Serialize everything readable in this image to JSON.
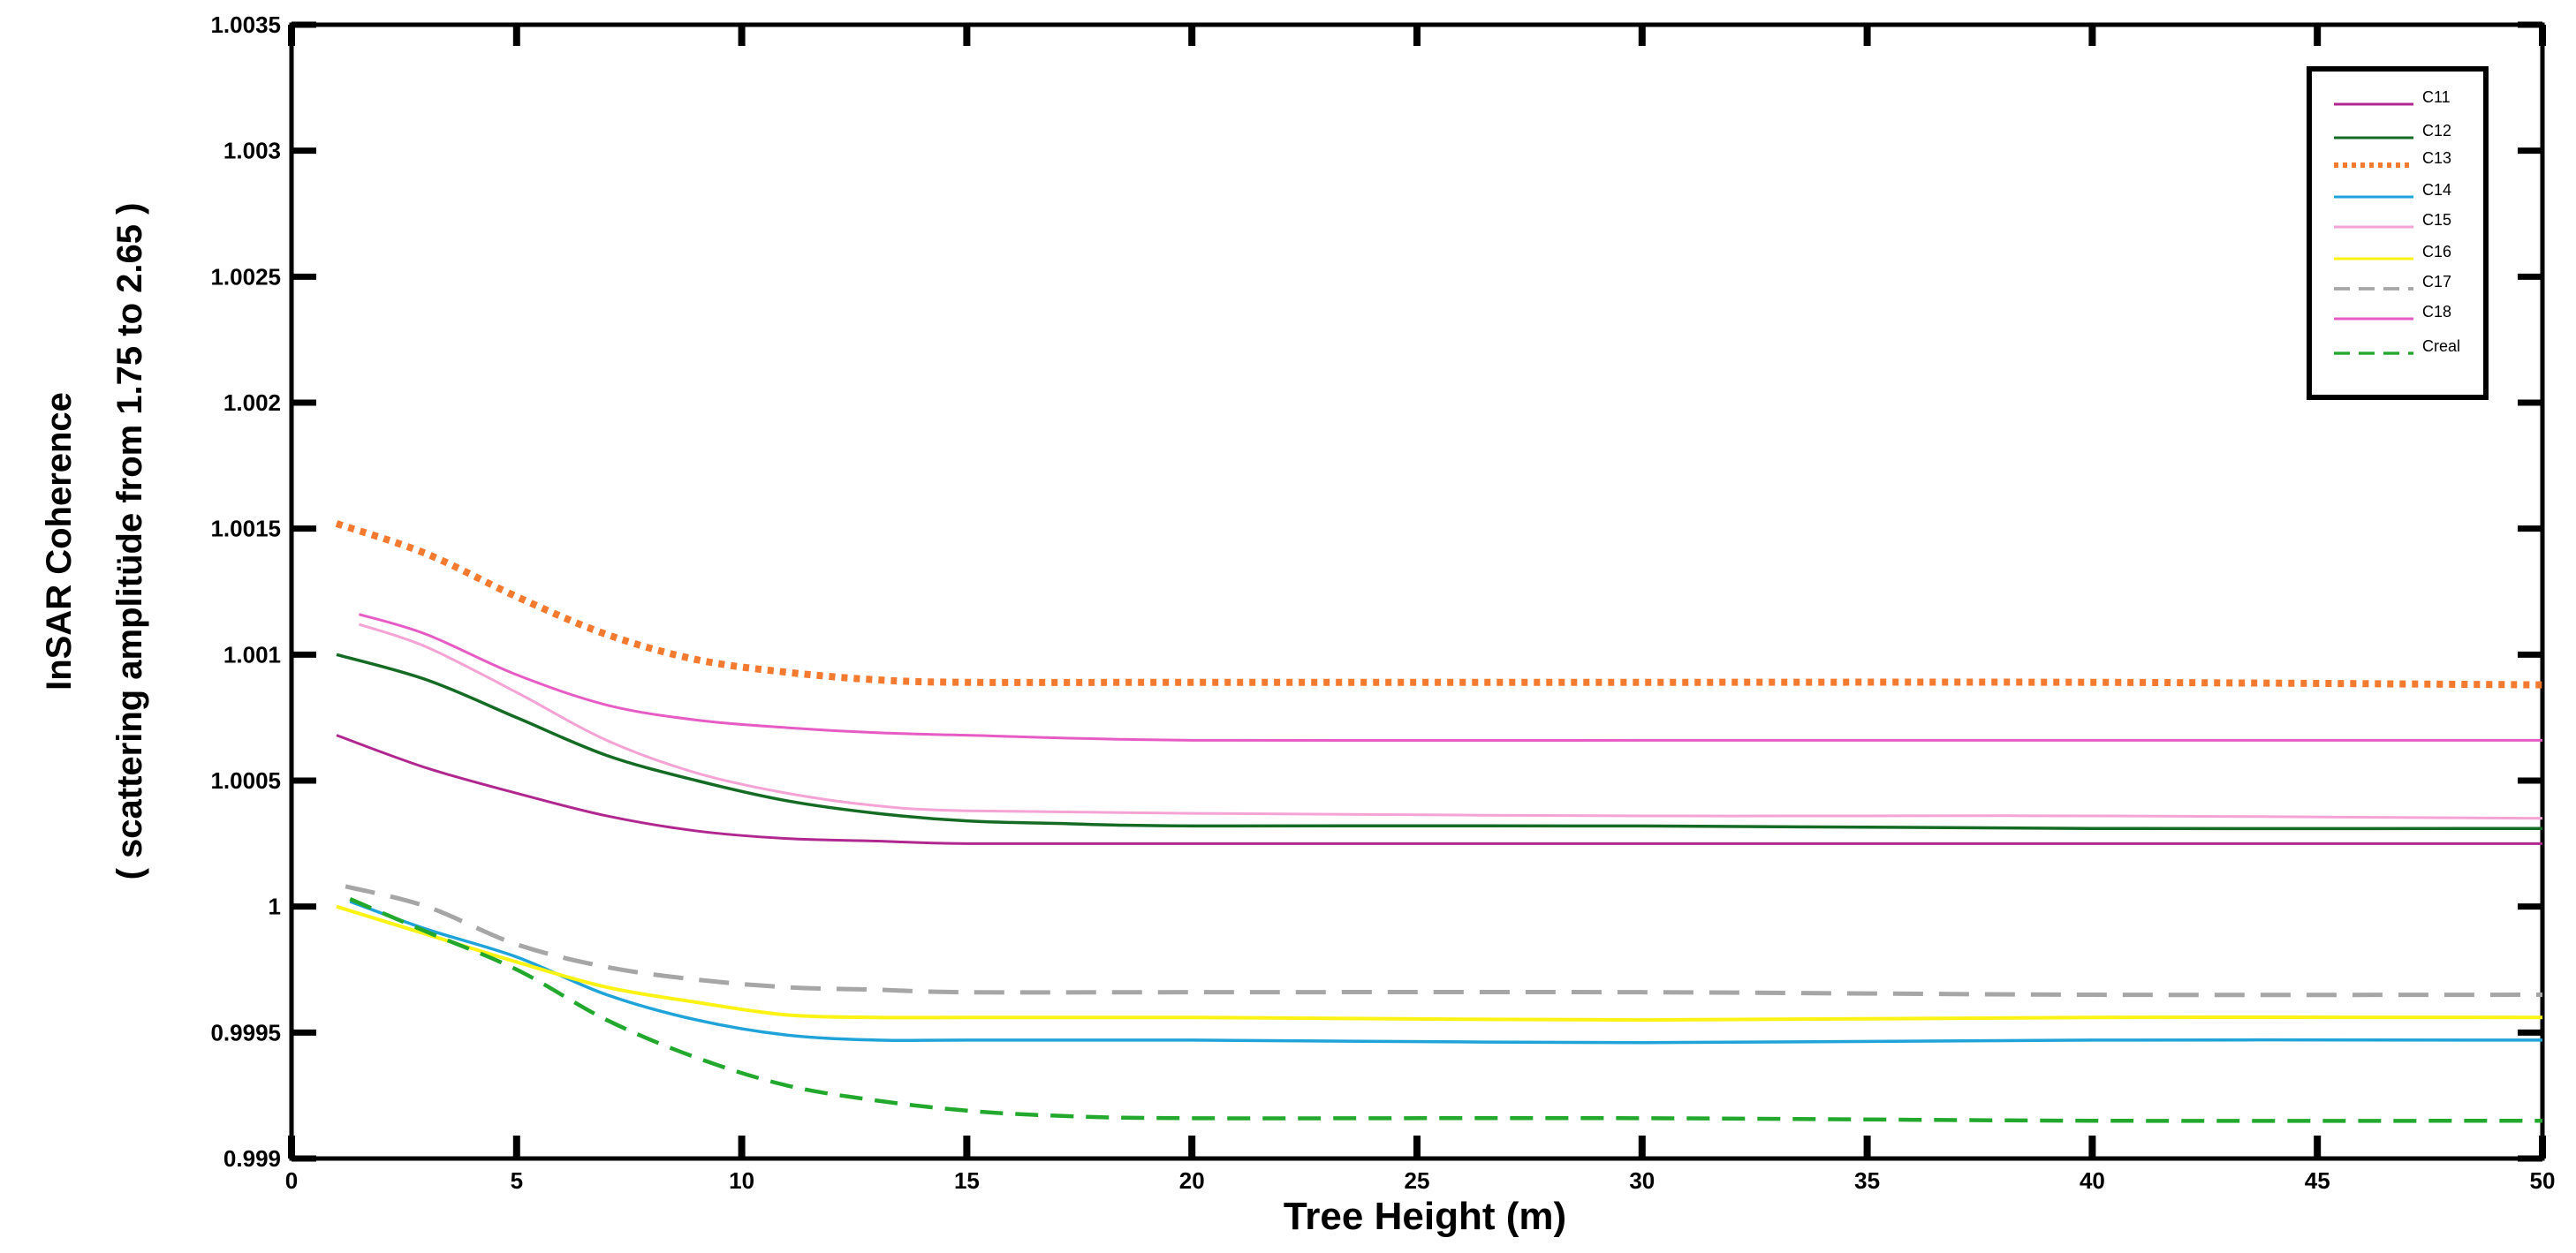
{
  "chart_data": {
    "type": "line",
    "xlabel": "Tree Height (m)",
    "ylabel": "InSAR Coherence",
    "ylabel_sub": "( scattering amplitüde from 1.75 to 2.65 )",
    "xlim": [
      0,
      50
    ],
    "ylim": [
      0.999,
      1.0035
    ],
    "x_ticks": [
      "0",
      "5",
      "10",
      "15",
      "20",
      "25",
      "30",
      "35",
      "40",
      "45",
      "50"
    ],
    "y_ticks": [
      "0.999",
      "0.9995",
      "1",
      "1.0005",
      "1.001",
      "1.0015",
      "1.002",
      "1.0025",
      "1.003",
      "1.0035"
    ],
    "grid": false,
    "legend_position": "top-right",
    "series": [
      {
        "name": "C11",
        "color": "#b0278f",
        "dash": "solid",
        "width": 3,
        "x": [
          1,
          3,
          5,
          7,
          9,
          11,
          13,
          15,
          20,
          30,
          40,
          50
        ],
        "y": [
          1.00068,
          1.00055,
          1.00045,
          1.00036,
          1.0003,
          1.00027,
          1.00026,
          1.00025,
          1.00025,
          1.00025,
          1.00025,
          1.00025
        ]
      },
      {
        "name": "C12",
        "color": "#156b24",
        "dash": "solid",
        "width": 3.5,
        "x": [
          1,
          3,
          5,
          7,
          9,
          11,
          13,
          15,
          17,
          20,
          30,
          40,
          50
        ],
        "y": [
          1.001,
          1.0009,
          1.00075,
          1.0006,
          1.0005,
          1.00042,
          1.00037,
          1.00034,
          1.00033,
          1.00032,
          1.00032,
          1.00031,
          1.00031
        ]
      },
      {
        "name": "C13",
        "color": "#f47a30",
        "dash": "dotted",
        "width": 8,
        "x": [
          1,
          3,
          5,
          7,
          9,
          11,
          13,
          15,
          20,
          30,
          40,
          50
        ],
        "y": [
          1.00152,
          1.0014,
          1.00123,
          1.00108,
          1.00098,
          1.00093,
          1.0009,
          1.00089,
          1.00089,
          1.00089,
          1.00089,
          1.00088
        ]
      },
      {
        "name": "C14",
        "color": "#1fa3d8",
        "dash": "solid",
        "width": 3.5,
        "x": [
          1.3,
          3,
          5,
          7,
          9,
          11,
          13,
          15,
          20,
          30,
          40,
          50
        ],
        "y": [
          1.00002,
          0.99991,
          0.9998,
          0.99965,
          0.99955,
          0.99949,
          0.99947,
          0.99947,
          0.99947,
          0.99946,
          0.99947,
          0.99947
        ]
      },
      {
        "name": "C15",
        "color": "#f4a3d4",
        "dash": "solid",
        "width": 3,
        "x": [
          1.5,
          3,
          5,
          7,
          9,
          11,
          13,
          15,
          20,
          30,
          40,
          50
        ],
        "y": [
          1.00112,
          1.00103,
          1.00085,
          1.00066,
          1.00053,
          1.00045,
          1.0004,
          1.00038,
          1.00037,
          1.00036,
          1.00036,
          1.00035
        ]
      },
      {
        "name": "C16",
        "color": "#fbf313",
        "dash": "solid",
        "width": 4,
        "x": [
          1,
          3,
          5,
          7,
          9,
          11,
          13,
          15,
          20,
          30,
          40,
          50
        ],
        "y": [
          1.0,
          0.99989,
          0.99978,
          0.99968,
          0.99962,
          0.99957,
          0.99956,
          0.99956,
          0.99956,
          0.99955,
          0.99956,
          0.99956
        ]
      },
      {
        "name": "C17",
        "color": "#a6a6a6",
        "dash": "dashed",
        "width": 5,
        "x": [
          1.2,
          3,
          5,
          7,
          9,
          11,
          13,
          15,
          20,
          30,
          40,
          50
        ],
        "y": [
          1.00008,
          1.0,
          0.99985,
          0.99976,
          0.99971,
          0.99968,
          0.99967,
          0.99966,
          0.99966,
          0.99966,
          0.99965,
          0.99965
        ]
      },
      {
        "name": "C18",
        "color": "#e65cc4",
        "dash": "solid",
        "width": 3,
        "x": [
          1.5,
          3,
          5,
          7,
          9,
          11,
          13,
          15,
          20,
          30,
          40,
          50
        ],
        "y": [
          1.00116,
          1.00108,
          1.00092,
          1.0008,
          1.00074,
          1.00071,
          1.00069,
          1.00068,
          1.00066,
          1.00066,
          1.00066,
          1.00066
        ]
      },
      {
        "name": "Creal",
        "color": "#22a92d",
        "dash": "dashed",
        "width": 4.5,
        "x": [
          1.3,
          3,
          5,
          7,
          9,
          11,
          13,
          15,
          17,
          20,
          30,
          40,
          50
        ],
        "y": [
          1.00003,
          0.9999,
          0.99975,
          0.99955,
          0.9994,
          0.99929,
          0.99923,
          0.99919,
          0.99917,
          0.99916,
          0.99916,
          0.99915,
          0.99915
        ]
      }
    ]
  }
}
